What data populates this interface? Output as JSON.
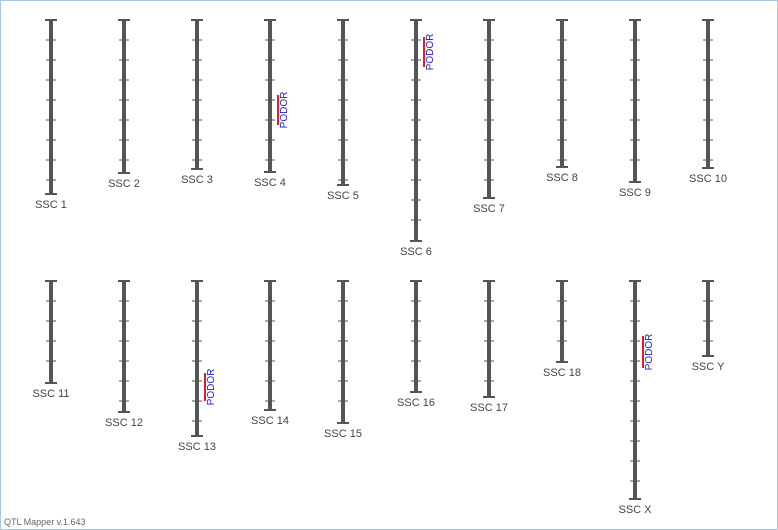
{
  "chromosomes": [
    {
      "label": "SSC 1",
      "qtls": []
    },
    {
      "label": "SSC 2",
      "qtls": []
    },
    {
      "label": "SSC 3",
      "qtls": []
    },
    {
      "label": "SSC 4",
      "qtls": [
        {
          "label": "PODOR"
        }
      ]
    },
    {
      "label": "SSC 5",
      "qtls": []
    },
    {
      "label": "SSC 6",
      "qtls": [
        {
          "label": "PODOR"
        }
      ]
    },
    {
      "label": "SSC 7",
      "qtls": []
    },
    {
      "label": "SSC 8",
      "qtls": []
    },
    {
      "label": "SSC 9",
      "qtls": []
    },
    {
      "label": "SSC 10",
      "qtls": []
    },
    {
      "label": "SSC 11",
      "qtls": []
    },
    {
      "label": "SSC 12",
      "qtls": []
    },
    {
      "label": "SSC 13",
      "qtls": [
        {
          "label": "PODOR"
        }
      ]
    },
    {
      "label": "SSC 14",
      "qtls": []
    },
    {
      "label": "SSC 15",
      "qtls": []
    },
    {
      "label": "SSC 16",
      "qtls": []
    },
    {
      "label": "SSC 17",
      "qtls": []
    },
    {
      "label": "SSC 18",
      "qtls": []
    },
    {
      "label": "SSC X",
      "qtls": [
        {
          "label": "PODOR"
        }
      ]
    },
    {
      "label": "SSC Y",
      "qtls": []
    }
  ],
  "footer": "QTL Mapper v.1.643"
}
